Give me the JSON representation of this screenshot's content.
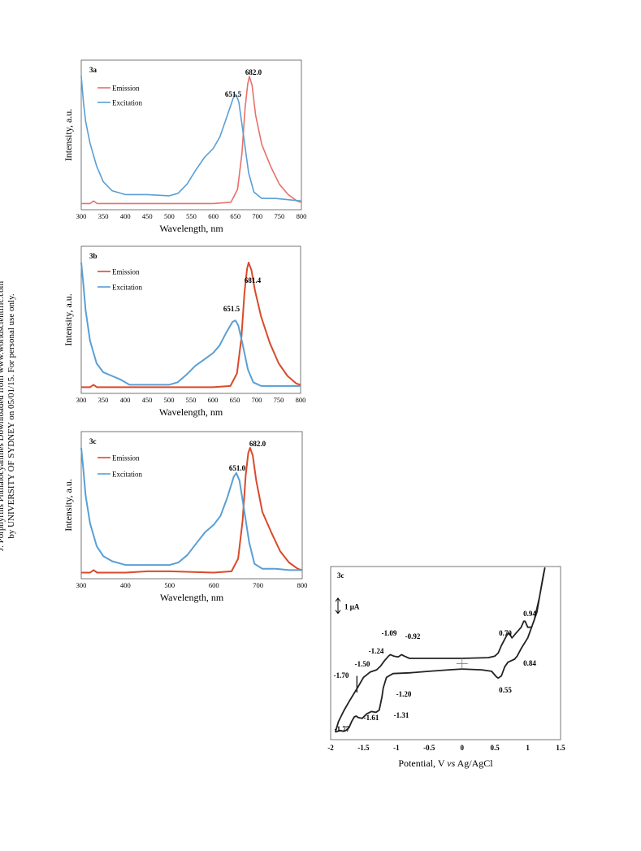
{
  "side_note": {
    "line1": "J. Porphyrins Phthalocyanines Downloaded from www.worldscientific.com",
    "line2": "by UNIVERSITY OF SYDNEY on 05/01/15. For personal use only."
  },
  "chart_data": [
    {
      "type": "line",
      "panel_label": "3a",
      "xlabel": "Wavelength, nm",
      "ylabel": "Intensity, a.u.",
      "xlim": [
        300,
        800
      ],
      "ylim": [
        0,
        1
      ],
      "xticks": [
        300,
        350,
        400,
        450,
        500,
        550,
        600,
        650,
        700,
        750,
        800
      ],
      "legend_position": "top-left",
      "series": [
        {
          "name": "Emission",
          "color": "#e8706c",
          "points": [
            [
              300,
              0.01
            ],
            [
              320,
              0.01
            ],
            [
              328,
              0.03
            ],
            [
              336,
              0.01
            ],
            [
              400,
              0.01
            ],
            [
              500,
              0.01
            ],
            [
              600,
              0.01
            ],
            [
              640,
              0.02
            ],
            [
              655,
              0.12
            ],
            [
              665,
              0.4
            ],
            [
              672,
              0.75
            ],
            [
              678,
              0.94
            ],
            [
              682,
              1.0
            ],
            [
              688,
              0.93
            ],
            [
              696,
              0.7
            ],
            [
              710,
              0.47
            ],
            [
              730,
              0.3
            ],
            [
              750,
              0.16
            ],
            [
              770,
              0.08
            ],
            [
              790,
              0.03
            ],
            [
              800,
              0.02
            ]
          ]
        },
        {
          "name": "Excitation",
          "color": "#5a9fd4",
          "points": [
            [
              300,
              1.0
            ],
            [
              305,
              0.8
            ],
            [
              310,
              0.65
            ],
            [
              320,
              0.48
            ],
            [
              335,
              0.3
            ],
            [
              350,
              0.18
            ],
            [
              370,
              0.11
            ],
            [
              400,
              0.08
            ],
            [
              450,
              0.08
            ],
            [
              500,
              0.07
            ],
            [
              520,
              0.09
            ],
            [
              540,
              0.16
            ],
            [
              560,
              0.27
            ],
            [
              580,
              0.37
            ],
            [
              600,
              0.44
            ],
            [
              615,
              0.53
            ],
            [
              630,
              0.68
            ],
            [
              645,
              0.83
            ],
            [
              651.5,
              0.86
            ],
            [
              658,
              0.8
            ],
            [
              668,
              0.55
            ],
            [
              680,
              0.25
            ],
            [
              692,
              0.1
            ],
            [
              710,
              0.05
            ],
            [
              740,
              0.05
            ],
            [
              770,
              0.04
            ],
            [
              800,
              0.03
            ]
          ]
        }
      ],
      "annotations": [
        "682.0",
        "651.5"
      ]
    },
    {
      "type": "line",
      "panel_label": "3b",
      "xlabel": "Wavelength, nm",
      "ylabel": "Intensity, a.u.",
      "xlim": [
        300,
        800
      ],
      "ylim": [
        0,
        1
      ],
      "xticks": [
        300,
        350,
        400,
        450,
        500,
        550,
        600,
        650,
        700,
        750,
        800
      ],
      "legend_position": "top-left",
      "series": [
        {
          "name": "Emission",
          "color": "#d94a2b",
          "points": [
            [
              300,
              0.01
            ],
            [
              320,
              0.01
            ],
            [
              328,
              0.03
            ],
            [
              336,
              0.01
            ],
            [
              400,
              0.01
            ],
            [
              500,
              0.01
            ],
            [
              600,
              0.01
            ],
            [
              640,
              0.02
            ],
            [
              655,
              0.12
            ],
            [
              665,
              0.4
            ],
            [
              672,
              0.76
            ],
            [
              678,
              0.95
            ],
            [
              681.4,
              1.0
            ],
            [
              688,
              0.94
            ],
            [
              696,
              0.78
            ],
            [
              710,
              0.57
            ],
            [
              730,
              0.36
            ],
            [
              750,
              0.2
            ],
            [
              770,
              0.1
            ],
            [
              790,
              0.04
            ],
            [
              800,
              0.03
            ]
          ]
        },
        {
          "name": "Excitation",
          "color": "#5a9fd4",
          "points": [
            [
              300,
              1.0
            ],
            [
              305,
              0.82
            ],
            [
              310,
              0.62
            ],
            [
              320,
              0.38
            ],
            [
              335,
              0.2
            ],
            [
              350,
              0.13
            ],
            [
              370,
              0.1
            ],
            [
              390,
              0.07
            ],
            [
              410,
              0.03
            ],
            [
              450,
              0.03
            ],
            [
              500,
              0.03
            ],
            [
              520,
              0.05
            ],
            [
              540,
              0.11
            ],
            [
              560,
              0.18
            ],
            [
              580,
              0.23
            ],
            [
              600,
              0.28
            ],
            [
              615,
              0.34
            ],
            [
              630,
              0.44
            ],
            [
              645,
              0.53
            ],
            [
              651.5,
              0.54
            ],
            [
              658,
              0.5
            ],
            [
              668,
              0.35
            ],
            [
              680,
              0.15
            ],
            [
              692,
              0.05
            ],
            [
              710,
              0.02
            ],
            [
              740,
              0.02
            ],
            [
              770,
              0.02
            ],
            [
              800,
              0.02
            ]
          ]
        }
      ],
      "annotations": [
        "681.4",
        "651.5"
      ]
    },
    {
      "type": "line",
      "panel_label": "3c",
      "xlabel": "Wavelength, nm",
      "ylabel": "Intensity, a.u.",
      "xlim": [
        300,
        800
      ],
      "ylim": [
        0,
        1
      ],
      "xticks": [
        300,
        400,
        500,
        600,
        700,
        800
      ],
      "legend_position": "top-left",
      "series": [
        {
          "name": "Emission",
          "color": "#d94a2b",
          "points": [
            [
              300,
              0.01
            ],
            [
              320,
              0.01
            ],
            [
              328,
              0.03
            ],
            [
              336,
              0.01
            ],
            [
              400,
              0.01
            ],
            [
              450,
              0.02
            ],
            [
              500,
              0.02
            ],
            [
              600,
              0.01
            ],
            [
              640,
              0.02
            ],
            [
              655,
              0.12
            ],
            [
              665,
              0.42
            ],
            [
              672,
              0.78
            ],
            [
              678,
              0.96
            ],
            [
              682,
              1.0
            ],
            [
              688,
              0.94
            ],
            [
              696,
              0.74
            ],
            [
              710,
              0.49
            ],
            [
              730,
              0.33
            ],
            [
              750,
              0.18
            ],
            [
              770,
              0.09
            ],
            [
              790,
              0.04
            ],
            [
              800,
              0.03
            ]
          ]
        },
        {
          "name": "Excitation",
          "color": "#5a9fd4",
          "points": [
            [
              300,
              1.0
            ],
            [
              305,
              0.82
            ],
            [
              310,
              0.62
            ],
            [
              320,
              0.4
            ],
            [
              335,
              0.22
            ],
            [
              350,
              0.14
            ],
            [
              370,
              0.1
            ],
            [
              400,
              0.07
            ],
            [
              450,
              0.07
            ],
            [
              500,
              0.07
            ],
            [
              520,
              0.09
            ],
            [
              540,
              0.15
            ],
            [
              560,
              0.24
            ],
            [
              580,
              0.33
            ],
            [
              600,
              0.39
            ],
            [
              615,
              0.46
            ],
            [
              630,
              0.6
            ],
            [
              645,
              0.77
            ],
            [
              651,
              0.8
            ],
            [
              658,
              0.74
            ],
            [
              668,
              0.52
            ],
            [
              680,
              0.25
            ],
            [
              692,
              0.08
            ],
            [
              710,
              0.04
            ],
            [
              740,
              0.04
            ],
            [
              770,
              0.03
            ],
            [
              800,
              0.03
            ]
          ]
        }
      ],
      "annotations": [
        "682.0",
        "651.0"
      ]
    },
    {
      "type": "line",
      "panel_label": "3c",
      "xlabel": "Potential, V vs Ag/AgCl",
      "ylabel": "",
      "xlim": [
        -2,
        1.5
      ],
      "ylim": [
        -5.4,
        6.0
      ],
      "xticks": [
        -2,
        -1.5,
        -1,
        -0.5,
        0,
        0.5,
        1,
        1.5
      ],
      "scale_bar_label": "1 μA",
      "scale_bar_value": 1,
      "series": [
        {
          "name": "",
          "color": "#222222",
          "points": [
            [
              -1.93,
              -4.9
            ],
            [
              -1.86,
              -4.8
            ],
            [
              -1.8,
              -4.85
            ],
            [
              -1.77,
              -4.8
            ],
            [
              -1.72,
              -4.6
            ],
            [
              -1.68,
              -4.2
            ],
            [
              -1.64,
              -3.9
            ],
            [
              -1.61,
              -3.85
            ],
            [
              -1.58,
              -3.95
            ],
            [
              -1.52,
              -4.0
            ],
            [
              -1.45,
              -3.7
            ],
            [
              -1.38,
              -3.55
            ],
            [
              -1.31,
              -3.6
            ],
            [
              -1.26,
              -3.45
            ],
            [
              -1.22,
              -2.6
            ],
            [
              -1.2,
              -2.0
            ],
            [
              -1.15,
              -1.3
            ],
            [
              -1.05,
              -1.05
            ],
            [
              -0.8,
              -1.0
            ],
            [
              -0.5,
              -0.9
            ],
            [
              -0.2,
              -0.8
            ],
            [
              0.0,
              -0.75
            ],
            [
              0.3,
              -0.8
            ],
            [
              0.45,
              -0.9
            ],
            [
              0.52,
              -1.25
            ],
            [
              0.55,
              -1.35
            ],
            [
              0.6,
              -1.2
            ],
            [
              0.65,
              -0.6
            ],
            [
              0.7,
              -0.3
            ],
            [
              0.8,
              -0.1
            ],
            [
              0.84,
              0.1
            ],
            [
              0.9,
              0.6
            ],
            [
              1.0,
              1.3
            ],
            [
              1.1,
              2.5
            ],
            [
              1.18,
              4.0
            ],
            [
              1.23,
              5.2
            ],
            [
              1.26,
              5.9
            ],
            [
              1.24,
              5.5
            ],
            [
              1.2,
              4.5
            ],
            [
              1.14,
              3.0
            ],
            [
              1.06,
              2.0
            ],
            [
              1.0,
              2.0
            ],
            [
              0.96,
              2.4
            ],
            [
              0.94,
              2.4
            ],
            [
              0.9,
              2.0
            ],
            [
              0.82,
              1.6
            ],
            [
              0.76,
              1.3
            ],
            [
              0.72,
              1.6
            ],
            [
              0.7,
              1.6
            ],
            [
              0.66,
              1.3
            ],
            [
              0.6,
              0.8
            ],
            [
              0.55,
              0.3
            ],
            [
              0.5,
              0.1
            ],
            [
              0.4,
              0.0
            ],
            [
              0.0,
              -0.05
            ],
            [
              -0.5,
              -0.05
            ],
            [
              -0.8,
              -0.05
            ],
            [
              -0.88,
              0.1
            ],
            [
              -0.92,
              0.2
            ],
            [
              -0.97,
              0.05
            ],
            [
              -1.04,
              0.1
            ],
            [
              -1.09,
              0.2
            ],
            [
              -1.12,
              0.1
            ],
            [
              -1.18,
              -0.2
            ],
            [
              -1.24,
              -0.55
            ],
            [
              -1.3,
              -0.8
            ],
            [
              -1.4,
              -0.95
            ],
            [
              -1.5,
              -1.3
            ],
            [
              -1.58,
              -1.9
            ],
            [
              -1.65,
              -2.4
            ],
            [
              -1.72,
              -2.9
            ],
            [
              -1.8,
              -3.5
            ],
            [
              -1.88,
              -4.2
            ],
            [
              -1.93,
              -4.9
            ]
          ]
        }
      ],
      "annotations": [
        "-1.09",
        "-0.92",
        "-1.24",
        "-1.50",
        "-1.70",
        "-1.20",
        "-1.61",
        "-1.31",
        "-1.77",
        "0.70",
        "0.94",
        "0.84",
        "0.55"
      ]
    }
  ]
}
